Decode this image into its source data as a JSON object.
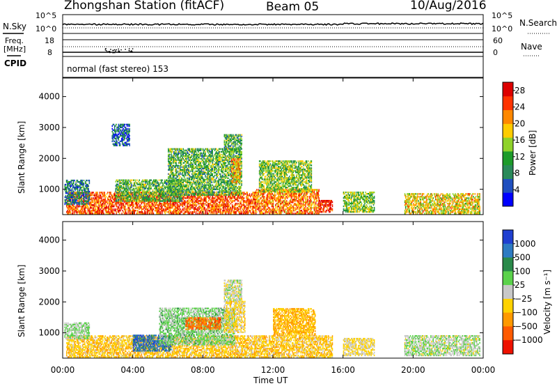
{
  "header": {
    "station": "Zhongshan Station (fitACF)",
    "beam": "Beam 05",
    "date": "10/Aug/2016"
  },
  "strip": {
    "nsky_label": "N.Sky",
    "nsearch_label": "N.Search",
    "freq_label": "Freq.",
    "mhz_label": "[MHz]",
    "nave_label": "Nave",
    "cpid_label": "CPID",
    "cpid_text": "normal (fast stereo) 153",
    "top_left_ticks": [
      "10^5",
      "10^0"
    ],
    "top_right_ticks": [
      "10^5",
      "10^0"
    ],
    "freq_ticks": [
      "18",
      "8"
    ],
    "nave_ticks": [
      "60",
      "0"
    ]
  },
  "colors": {
    "power": [
      "#0000ff",
      "#1f4fbf",
      "#2a8a5a",
      "#1d9b2a",
      "#8fd22a",
      "#ffcc00",
      "#ff8800",
      "#ff3300",
      "#dd0000"
    ],
    "velocity": [
      "#1f3fd0",
      "#2e7bc2",
      "#2a8a4a",
      "#5bd24b",
      "#c8c8c8",
      "#ffd200",
      "#ff9900",
      "#ff5a00",
      "#ee1100"
    ]
  },
  "chart_data": [
    {
      "type": "heatmap",
      "title": "",
      "xlabel": "",
      "ylabel": "Slant Range [km]",
      "x_ticks": [
        "00:00",
        "04:00",
        "08:00",
        "12:00",
        "16:00",
        "20:00",
        "00:00"
      ],
      "y_ticks": [
        "1000",
        "2000",
        "3000",
        "4000"
      ],
      "xlim": [
        0,
        24
      ],
      "ylim": [
        180,
        4600
      ],
      "colorbar": {
        "label": "Power [dB]",
        "ticks": [
          "4",
          "8",
          "12",
          "16",
          "20",
          "24",
          "28"
        ],
        "range": [
          0,
          30
        ]
      },
      "blobs": [
        {
          "t0": 0.2,
          "t1": 11.0,
          "r0": 200,
          "r1": 900,
          "val": 24
        },
        {
          "t0": 11.0,
          "t1": 14.6,
          "r0": 200,
          "r1": 1000,
          "val": 22
        },
        {
          "t0": 14.6,
          "t1": 15.4,
          "r0": 250,
          "r1": 650,
          "val": 26
        },
        {
          "t0": 16.0,
          "t1": 17.8,
          "r0": 250,
          "r1": 900,
          "val": 14
        },
        {
          "t0": 19.5,
          "t1": 23.8,
          "r0": 200,
          "r1": 850,
          "val": 18
        },
        {
          "t0": 0.1,
          "t1": 1.5,
          "r0": 500,
          "r1": 1300,
          "val": 8
        },
        {
          "t0": 3.0,
          "t1": 6.8,
          "r0": 600,
          "r1": 1300,
          "val": 12
        },
        {
          "t0": 6.0,
          "t1": 10.2,
          "r0": 800,
          "r1": 2300,
          "val": 12
        },
        {
          "t0": 9.2,
          "t1": 10.2,
          "r0": 2200,
          "r1": 2750,
          "val": 12
        },
        {
          "t0": 9.6,
          "t1": 10.1,
          "r0": 1200,
          "r1": 2000,
          "val": 20
        },
        {
          "t0": 11.2,
          "t1": 14.2,
          "r0": 900,
          "r1": 1900,
          "val": 14
        },
        {
          "t0": 2.8,
          "t1": 3.8,
          "r0": 2400,
          "r1": 3100,
          "val": 6
        }
      ]
    },
    {
      "type": "heatmap",
      "title": "",
      "xlabel": "Time UT",
      "ylabel": "Slant Range [km]",
      "x_ticks": [
        "00:00",
        "04:00",
        "08:00",
        "12:00",
        "16:00",
        "20:00",
        "00:00"
      ],
      "y_ticks": [
        "1000",
        "2000",
        "3000",
        "4000"
      ],
      "xlim": [
        0,
        24
      ],
      "ylim": [
        180,
        4600
      ],
      "colorbar": {
        "label": "Velocity [m s⁻¹]",
        "ticks": [
          "1000",
          "500",
          "100",
          "25",
          "−25",
          "−100",
          "−500",
          "−1000"
        ],
        "range": [
          -1200,
          1200
        ]
      },
      "blobs": [
        {
          "t0": 0.2,
          "t1": 11.0,
          "r0": 200,
          "r1": 900,
          "val": -300
        },
        {
          "t0": 4.0,
          "t1": 6.2,
          "r0": 400,
          "r1": 900,
          "val": 800
        },
        {
          "t0": 11.0,
          "t1": 15.4,
          "r0": 200,
          "r1": 900,
          "val": -300
        },
        {
          "t0": 16.0,
          "t1": 17.8,
          "r0": 250,
          "r1": 800,
          "val": -150
        },
        {
          "t0": 19.5,
          "t1": 23.8,
          "r0": 250,
          "r1": 900,
          "val": 60
        },
        {
          "t0": 0.1,
          "t1": 1.5,
          "r0": 800,
          "r1": 1300,
          "val": 150
        },
        {
          "t0": 5.5,
          "t1": 9.8,
          "r0": 600,
          "r1": 1800,
          "val": 200
        },
        {
          "t0": 7.0,
          "t1": 9.0,
          "r0": 1100,
          "r1": 1500,
          "val": -700
        },
        {
          "t0": 9.2,
          "t1": 10.2,
          "r0": 2000,
          "r1": 2700,
          "val": 0
        },
        {
          "t0": 9.2,
          "t1": 10.4,
          "r0": 1000,
          "r1": 2000,
          "val": -200
        },
        {
          "t0": 12.0,
          "t1": 14.4,
          "r0": 900,
          "r1": 1800,
          "val": -400
        }
      ]
    }
  ]
}
